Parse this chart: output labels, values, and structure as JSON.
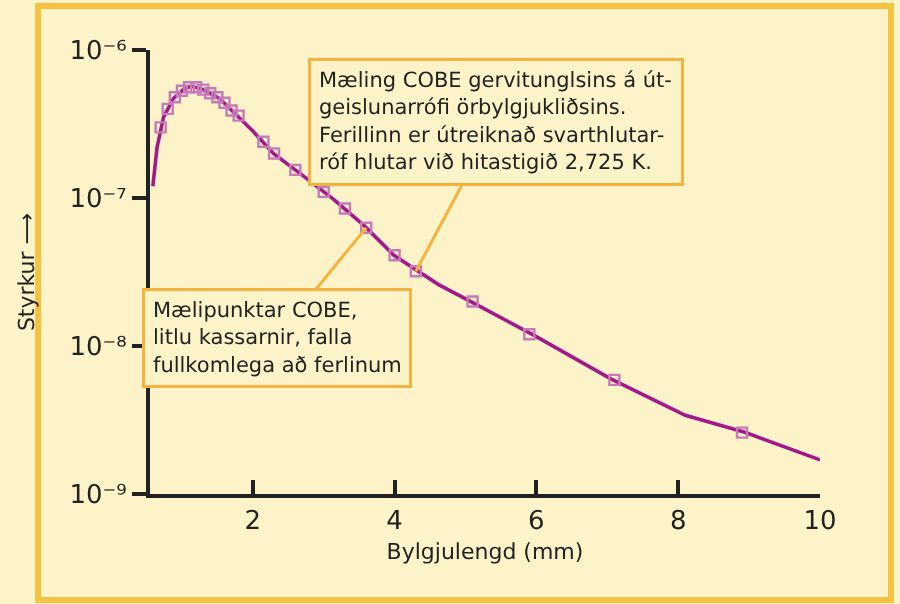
{
  "chart_data": {
    "type": "line",
    "xlabel": "Bylgjulengd (mm)",
    "ylabel": "Styrkur ⟶",
    "log": "y",
    "grid": false,
    "xlim": [
      0.55,
      10
    ],
    "xticks": [
      2,
      4,
      6,
      8,
      10
    ],
    "ylim": [
      1e-09,
      1e-06
    ],
    "yticks": [
      {
        "value": 1e-06,
        "label": "10⁻⁶"
      },
      {
        "value": 1e-07,
        "label": "10⁻⁷"
      },
      {
        "value": 1e-08,
        "label": "10⁻⁸"
      },
      {
        "value": 1e-09,
        "label": "10⁻⁹"
      }
    ],
    "series": [
      {
        "color": "#a3198c",
        "marker": "none",
        "line_style": "solid",
        "x": [
          0.59,
          0.65,
          0.74,
          0.88,
          1.02,
          1.13,
          1.3,
          1.53,
          1.73,
          2.01,
          2.29,
          2.72,
          3.14,
          3.57,
          3.99,
          4.62,
          5.07,
          5.98,
          7.05,
          8.1,
          8.95,
          10.0
        ],
        "values": [
          1.2e-07,
          2.2e-07,
          3.5e-07,
          4.7e-07,
          5.4e-07,
          5.7e-07,
          5.4e-07,
          4.7e-07,
          3.8e-07,
          2.8e-07,
          2e-07,
          1.4e-07,
          9.8e-08,
          6.5e-08,
          4.1e-08,
          2.6e-08,
          2e-08,
          1.17e-08,
          6e-09,
          3.4e-09,
          2.6e-09,
          1.7e-09
        ]
      },
      {
        "type": "scatter",
        "color": "#c77ab8",
        "marker": "square",
        "x": [
          0.7,
          0.8,
          0.9,
          1.0,
          1.1,
          1.2,
          1.3,
          1.4,
          1.5,
          1.6,
          1.7,
          1.8,
          2.15,
          2.3,
          2.6,
          3.0,
          3.3,
          3.6,
          4.0,
          4.3,
          5.1,
          5.9,
          7.1,
          8.9
        ],
        "values": [
          3e-07,
          4e-07,
          4.8e-07,
          5.3e-07,
          5.6e-07,
          5.6e-07,
          5.4e-07,
          5.1e-07,
          4.8e-07,
          4.4e-07,
          3.9e-07,
          3.6e-07,
          2.4e-07,
          2e-07,
          1.55e-07,
          1.1e-07,
          8.5e-08,
          6.3e-08,
          4.1e-08,
          3.2e-08,
          2e-08,
          1.2e-08,
          5.9e-09,
          2.6e-09
        ]
      }
    ],
    "annotations": [
      {
        "text": "Mæling COBE gervitunglsins á út-\ngeislunarrófi örbylgjukliðsins.\nFerillinn er útreiknað svarthlutar-\nróf hlutar við hitastigið 2,725 K.",
        "x": 4.3,
        "y": 3.2e-08
      },
      {
        "text": "Mælipunktar COBE,\nlitlu kassarnir, falla\nfullkomlega að ferlinum",
        "x": 3.6,
        "y": 6.3e-08
      }
    ]
  }
}
